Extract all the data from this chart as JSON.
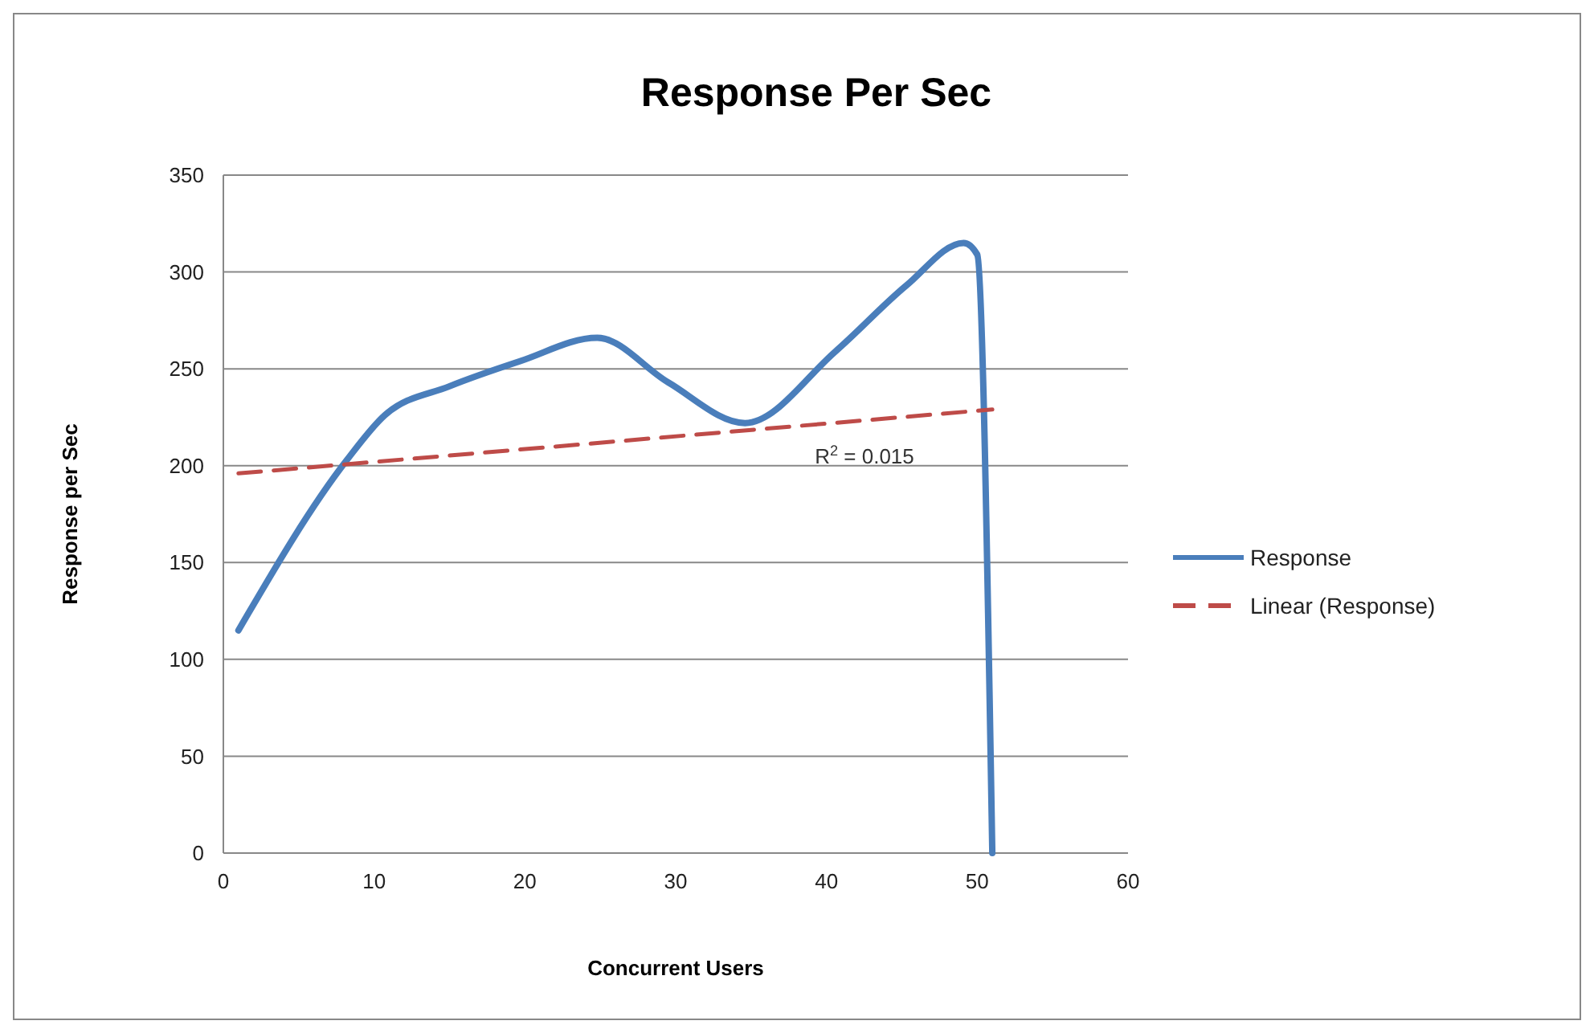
{
  "chart_data": {
    "type": "line",
    "title": "Response Per Sec",
    "xlabel": "Concurrent Users",
    "ylabel": "Response per Sec",
    "series": [
      {
        "name": "Response",
        "color": "#4a7ebb",
        "x": [
          1,
          8.2,
          10.7,
          15,
          19.7,
          24.8,
          29.5,
          34.6,
          40.6,
          45.3,
          49.1,
          50,
          51
        ],
        "values": [
          115,
          203,
          226,
          241,
          254,
          266,
          243,
          222,
          259,
          293,
          315,
          309,
          0
        ]
      },
      {
        "name": "Linear (Response)",
        "color": "#be4b48",
        "line_style": "dashed",
        "x": [
          1,
          51
        ],
        "values": [
          196,
          229
        ]
      }
    ],
    "annotations": [
      "R$^{2}$ = 0.015"
    ],
    "xlim": [
      0,
      60
    ],
    "xticks": [
      0,
      10,
      20,
      30,
      40,
      50,
      60
    ],
    "ylim": [
      0,
      350
    ],
    "yticks": [
      0,
      50,
      100,
      150,
      200,
      250,
      300,
      350
    ],
    "grid": "y",
    "legend": "right",
    "marker": "none"
  }
}
